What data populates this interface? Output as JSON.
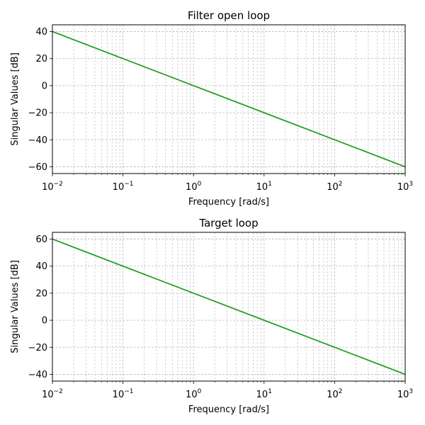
{
  "chart_data": [
    {
      "type": "line",
      "title": "Filter open loop",
      "xlabel": "Frequency [rad/s]",
      "ylabel": "Singular Values [dB]",
      "xscale": "log",
      "xlim": [
        0.01,
        1000
      ],
      "ylim": [
        -65,
        45
      ],
      "xtick_values": [
        0.01,
        0.1,
        1,
        10,
        100,
        1000
      ],
      "xtick_exponents": [
        "−2",
        "−1",
        "0",
        "1",
        "2",
        "3"
      ],
      "ytick_values": [
        40,
        20,
        0,
        -20,
        -40,
        -60
      ],
      "ytick_labels": [
        "40",
        "20",
        "0",
        "−20",
        "−40",
        "−60"
      ],
      "grid": true,
      "series": [
        {
          "color": "#2ca02c",
          "x": [
            0.01,
            1000
          ],
          "y": [
            40,
            -60
          ]
        },
        {
          "color": "#2ca02c",
          "x": [
            0.01,
            1000
          ],
          "y": [
            40,
            -60
          ]
        },
        {
          "color": "#2ca02c",
          "x": [
            0.01,
            1000
          ],
          "y": [
            40,
            -60
          ]
        }
      ]
    },
    {
      "type": "line",
      "title": "Target loop",
      "xlabel": "Frequency [rad/s]",
      "ylabel": "Singular Values [dB]",
      "xscale": "log",
      "xlim": [
        0.01,
        1000
      ],
      "ylim": [
        -45,
        65
      ],
      "xtick_values": [
        0.01,
        0.1,
        1,
        10,
        100,
        1000
      ],
      "xtick_exponents": [
        "−2",
        "−1",
        "0",
        "1",
        "2",
        "3"
      ],
      "ytick_values": [
        60,
        40,
        20,
        0,
        -20,
        -40
      ],
      "ytick_labels": [
        "60",
        "40",
        "20",
        "0",
        "−20",
        "−40"
      ],
      "grid": true,
      "series": [
        {
          "color": "#2ca02c",
          "x": [
            0.01,
            1000
          ],
          "y": [
            60,
            -40
          ]
        },
        {
          "color": "#2ca02c",
          "x": [
            0.01,
            1000
          ],
          "y": [
            60,
            -40
          ]
        },
        {
          "color": "#2ca02c",
          "x": [
            0.01,
            1000
          ],
          "y": [
            60,
            -40
          ]
        }
      ]
    }
  ]
}
